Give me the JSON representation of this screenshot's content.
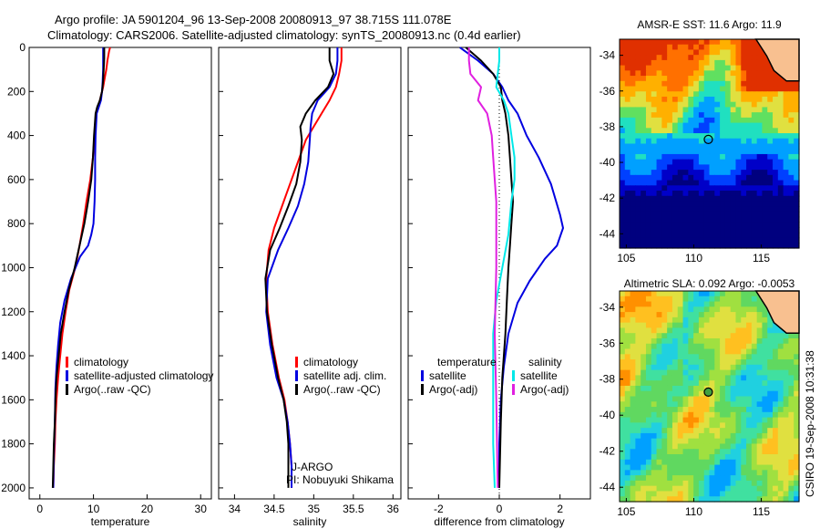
{
  "header": {
    "line1": "Argo profile: JA 5901204_96 13-Sep-2008 20080913_97 38.715S 111.078E",
    "line2": "Climatology: CARS2006. Satellite-adjusted climatology: synTS_20080913.nc (0.4d earlier)"
  },
  "side_label": "CSIRO 19-Sep-2008 10:31:38",
  "colors": {
    "red": "#ff0000",
    "blue": "#0000e0",
    "black": "#000000",
    "cyan": "#00e8e8",
    "magenta": "#e020e0"
  },
  "chart_data": [
    {
      "type": "line",
      "xlabel": "temperature",
      "xlim": [
        -2,
        32
      ],
      "ylim": [
        0,
        2050
      ],
      "y_reversed": true,
      "xticks": [
        "0",
        "10",
        "20",
        "30"
      ],
      "yticks": [
        "0",
        "200",
        "400",
        "600",
        "800",
        "1000",
        "1200",
        "1400",
        "1600",
        "1800",
        "2000"
      ],
      "legend": [
        "climatology",
        "satellite-adjusted climatology",
        "Argo(..raw -QC)"
      ],
      "series": [
        {
          "name": "climatology",
          "color": "red",
          "x": [
            13.1,
            12.9,
            12.6,
            12.4,
            12.1,
            11.8,
            11.4,
            11.0,
            10.5,
            10.2,
            9.9,
            9.4,
            8.7,
            8.1,
            7.4,
            6.6,
            5.5,
            4.8,
            4.2,
            3.8,
            3.4,
            3.1,
            2.9,
            2.8,
            2.6,
            2.5
          ],
          "y": [
            0,
            20,
            60,
            100,
            140,
            180,
            220,
            260,
            300,
            400,
            500,
            600,
            700,
            800,
            900,
            1000,
            1100,
            1200,
            1300,
            1400,
            1500,
            1600,
            1700,
            1800,
            1900,
            2000
          ]
        },
        {
          "name": "satellite-adjusted climatology",
          "color": "blue",
          "x": [
            11.8,
            11.8,
            11.8,
            11.7,
            11.6,
            11.4,
            11.0,
            10.6,
            10.4,
            10.3,
            10.3,
            10.2,
            10.0,
            9.6,
            9.0,
            7.5,
            5.8,
            4.6,
            3.8,
            3.4,
            3.1,
            2.9,
            2.8,
            2.6,
            2.5
          ],
          "y": [
            0,
            40,
            100,
            160,
            200,
            240,
            270,
            300,
            400,
            500,
            600,
            700,
            800,
            850,
            900,
            950,
            1050,
            1150,
            1250,
            1350,
            1450,
            1550,
            1700,
            1850,
            2000
          ]
        },
        {
          "name": "Argo(..raw -QC)",
          "color": "black",
          "x": [
            12.0,
            12.0,
            11.9,
            11.8,
            11.6,
            11.2,
            10.7,
            10.4,
            10.1,
            9.9,
            9.6,
            9.0,
            8.3,
            7.4,
            6.5,
            5.4,
            4.6,
            3.9,
            3.5,
            3.1,
            2.9,
            2.8,
            2.6,
            2.5,
            2.4
          ],
          "y": [
            0,
            50,
            100,
            150,
            200,
            240,
            270,
            300,
            400,
            500,
            600,
            700,
            800,
            900,
            1000,
            1100,
            1200,
            1300,
            1400,
            1500,
            1600,
            1700,
            1800,
            1900,
            2000
          ]
        }
      ]
    },
    {
      "type": "line",
      "xlabel": "salinity",
      "xlim": [
        33.8,
        36.1
      ],
      "ylim": [
        0,
        2050
      ],
      "y_reversed": true,
      "xticks": [
        "34",
        "34.5",
        "35",
        "35.5",
        "36"
      ],
      "legend": [
        "climatology",
        "satellite adj. clim.",
        "Argo(..raw -QC)"
      ],
      "annotation": [
        "J-ARGO",
        "PI: Nobuyuki Shikama"
      ],
      "series": [
        {
          "name": "climatology",
          "color": "red",
          "x": [
            35.35,
            35.35,
            35.32,
            35.28,
            35.2,
            35.1,
            35.0,
            34.9,
            34.8,
            34.7,
            34.6,
            34.5,
            34.43,
            34.4,
            34.42,
            34.48,
            34.56,
            34.63,
            34.67,
            34.7,
            34.72,
            34.72
          ],
          "y": [
            0,
            60,
            120,
            180,
            240,
            300,
            360,
            420,
            520,
            620,
            720,
            820,
            920,
            1050,
            1200,
            1350,
            1500,
            1600,
            1700,
            1800,
            1900,
            2000
          ]
        },
        {
          "name": "satellite adj. clim.",
          "color": "blue",
          "x": [
            35.3,
            35.3,
            35.28,
            35.2,
            35.05,
            34.98,
            34.96,
            34.95,
            34.93,
            34.88,
            34.8,
            34.68,
            34.55,
            34.42,
            34.4,
            34.45,
            34.53,
            34.62,
            34.67,
            34.7,
            34.72,
            34.72
          ],
          "y": [
            0,
            60,
            120,
            180,
            240,
            300,
            360,
            420,
            520,
            620,
            720,
            820,
            920,
            1050,
            1200,
            1350,
            1500,
            1600,
            1700,
            1800,
            1900,
            2000
          ]
        },
        {
          "name": "Argo(..raw -QC)",
          "color": "black",
          "x": [
            35.2,
            35.2,
            35.25,
            35.18,
            35.02,
            34.9,
            34.83,
            34.85,
            34.83,
            34.78,
            34.68,
            34.57,
            34.45,
            34.39,
            34.41,
            34.47,
            34.55,
            34.62,
            34.66,
            34.68,
            34.68,
            34.68
          ],
          "y": [
            0,
            60,
            120,
            180,
            240,
            300,
            360,
            420,
            520,
            620,
            720,
            820,
            920,
            1050,
            1200,
            1350,
            1500,
            1600,
            1700,
            1800,
            1900,
            2000
          ]
        }
      ]
    },
    {
      "type": "line",
      "xlabel": "difference from climatology",
      "xlim": [
        -3,
        3
      ],
      "ylim": [
        0,
        2050
      ],
      "y_reversed": true,
      "xticks": [
        "-2",
        "0",
        "2"
      ],
      "legend": [
        "temperature",
        "satellite",
        "Argo(-adj)",
        "salinity",
        "satellite",
        "Argo(-adj)"
      ],
      "series": [
        {
          "name": "temperature satellite",
          "color": "blue",
          "x": [
            -1.3,
            -0.7,
            -0.2,
            0.1,
            0.3,
            0.6,
            0.9,
            1.3,
            1.7,
            2.0,
            2.1,
            1.9,
            1.5,
            1.0,
            0.6,
            0.3,
            0.15,
            0.05,
            0.0,
            0.0
          ],
          "y": [
            0,
            60,
            120,
            180,
            240,
            300,
            400,
            500,
            620,
            760,
            820,
            900,
            960,
            1060,
            1160,
            1300,
            1450,
            1600,
            1800,
            2000
          ]
        },
        {
          "name": "temperature Argo(-adj)",
          "color": "black",
          "x": [
            -1.1,
            -0.6,
            -0.2,
            0.05,
            0.1,
            0.2,
            0.3,
            0.35,
            0.4,
            0.45,
            0.4,
            0.35,
            0.3,
            0.25,
            0.2,
            0.1,
            0.05,
            0.0
          ],
          "y": [
            0,
            60,
            120,
            180,
            240,
            300,
            400,
            500,
            600,
            700,
            800,
            900,
            1000,
            1150,
            1300,
            1500,
            1700,
            2000
          ]
        },
        {
          "name": "salinity satellite",
          "color": "cyan",
          "x": [
            0.0,
            0.0,
            -0.05,
            -0.1,
            0.15,
            0.3,
            0.4,
            0.5,
            0.5,
            0.4,
            0.3,
            0.1,
            -0.1,
            -0.2,
            -0.2,
            -0.2,
            -0.15
          ],
          "y": [
            0,
            60,
            120,
            180,
            240,
            300,
            400,
            500,
            600,
            700,
            850,
            1000,
            1150,
            1300,
            1500,
            1800,
            2000
          ]
        },
        {
          "name": "salinity Argo(-adj)",
          "color": "magenta",
          "x": [
            -1.0,
            -1.0,
            -0.95,
            -0.6,
            -0.7,
            -0.4,
            -0.25,
            -0.2,
            -0.15,
            -0.1,
            -0.1,
            -0.1,
            -0.15,
            -0.1,
            -0.05
          ],
          "y": [
            0,
            60,
            120,
            180,
            240,
            300,
            400,
            500,
            600,
            700,
            850,
            1000,
            1300,
            1600,
            2000
          ]
        }
      ]
    },
    {
      "type": "heatmap",
      "title": "AMSR-E SST: 11.6 Argo: 11.9",
      "xlim": [
        104.5,
        117.8
      ],
      "ylim": [
        -44.8,
        -33.1
      ],
      "xticks": [
        "105",
        "110",
        "115"
      ],
      "yticks": [
        "-34",
        "-36",
        "-38",
        "-40",
        "-42",
        "-44"
      ],
      "marker": {
        "x": 111.078,
        "y": -38.715
      },
      "palette": [
        "#00007f",
        "#0000c8",
        "#0040ff",
        "#00a0ff",
        "#20e0c0",
        "#60e060",
        "#e0e040",
        "#ffb000",
        "#ff7000",
        "#e03000"
      ]
    },
    {
      "type": "heatmap",
      "title": "Altimetric SLA: 0.092 Argo: -0.0053",
      "xlim": [
        104.5,
        117.8
      ],
      "ylim": [
        -44.8,
        -33.1
      ],
      "xticks": [
        "105",
        "110",
        "115"
      ],
      "yticks": [
        "-34",
        "-36",
        "-38",
        "-40",
        "-42",
        "-44"
      ],
      "marker": {
        "x": 111.078,
        "y": -38.715
      },
      "palette": [
        "#00a0ff",
        "#20d0e0",
        "#40e0a0",
        "#60d860",
        "#a0e040",
        "#e0e040",
        "#ffc020",
        "#ff9000"
      ]
    }
  ]
}
